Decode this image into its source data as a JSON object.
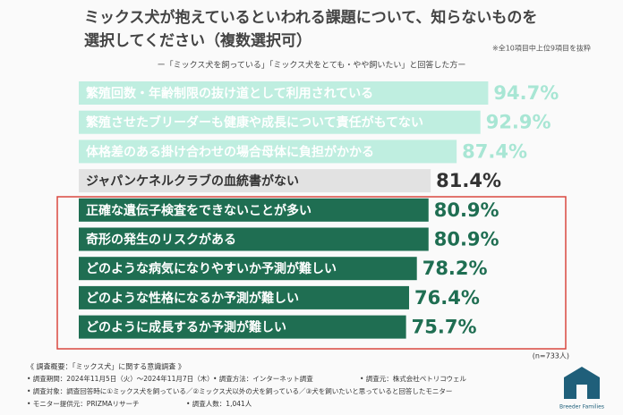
{
  "chart_data": {
    "type": "bar",
    "orientation": "horizontal",
    "title": [
      "ミックス犬が抱えているといわれる課題について、知らないものを",
      "選択してください（複数選択可）"
    ],
    "note": "※全10項目中上位9項目を抜粋",
    "subtitle": "ー「ミックス犬を飼っている」「ミックス犬をとても・やや飼いたい」と回答した方ー",
    "categories": [
      "繁殖回数・年齢制限の抜け道として利用されている",
      "繁殖させたブリーダーも健康や成長について責任がもてない",
      "体格差のある掛け合わせの場合母体に負担がかかる",
      "ジャパンケネルクラブの血統書がない",
      "正確な遺伝子検査をできないことが多い",
      "奇形の発生のリスクがある",
      "どのような病気になりやすいか予測が難しい",
      "どのような性格になるか予測が難しい",
      "どのように成長するか予測が難しい"
    ],
    "values": [
      94.7,
      92.9,
      87.4,
      81.4,
      80.9,
      80.9,
      78.2,
      76.4,
      75.7
    ],
    "value_labels": [
      "94.7%",
      "92.9%",
      "87.4%",
      "81.4%",
      "80.9%",
      "80.9%",
      "78.2%",
      "76.4%",
      "75.7%"
    ],
    "colors": [
      "#bfeee0",
      "#bfeee0",
      "#bfeee0",
      "#e2e2e2",
      "#1f6e52",
      "#1f6e52",
      "#1f6e52",
      "#1f6e52",
      "#1f6e52"
    ],
    "label_colors": [
      "#a8e6d4",
      "#a8e6d4",
      "#a8e6d4",
      "#333333",
      "#1f6e52",
      "#1f6e52",
      "#1f6e52",
      "#1f6e52",
      "#1f6e52"
    ],
    "text_colors": [
      "#ffffff",
      "#ffffff",
      "#ffffff",
      "#333333",
      "#ffffff",
      "#ffffff",
      "#ffffff",
      "#ffffff",
      "#ffffff"
    ],
    "xlim": [
      0,
      100
    ],
    "sample_size": "(n=733人)",
    "footer": [
      "《 調査概要：「ミックス犬」に関する意識調査 》",
      "• 調査期間：2024年11月5日（火）〜2024年11月7日（木）",
      "• 調査方法：インターネット調査",
      "• 調査元：株式会社ペトリコウェル",
      "• 調査対象：調査回答時に①ミックス犬を飼っている／②ミックス犬以外の犬を飼っている／③犬を飼いたいと思っていると回答したモニター",
      "• モニター提供元：PRIZMAリサーチ",
      "• 調査人数：1,041人"
    ],
    "logo": "Breeder Families"
  }
}
